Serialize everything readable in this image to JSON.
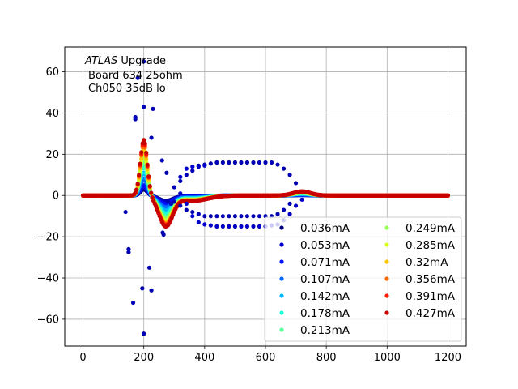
{
  "chart_data": {
    "type": "scatter",
    "annotation": {
      "title_italic": "ATLAS",
      "title_rest": " Upgrade",
      "line2": "Board 634 25ohm",
      "line3": "Ch050 35dB lo"
    },
    "xlim": [
      -60,
      1260
    ],
    "ylim": [
      -73,
      72
    ],
    "xticks": [
      0,
      200,
      400,
      600,
      800,
      1000,
      1200
    ],
    "yticks": [
      -60,
      -40,
      -20,
      0,
      20,
      40,
      60
    ],
    "grid": true,
    "legend_placement": "lower-right",
    "legend_columns": 2,
    "series": [
      {
        "name": "0.036mA",
        "color": "#00007f",
        "peak": 3,
        "trough": -2.5
      },
      {
        "name": "0.053mA",
        "color": "#0000c8",
        "peak": 4,
        "trough": -3
      },
      {
        "name": "0.071mA",
        "color": "#0010ff",
        "peak": 5,
        "trough": -4
      },
      {
        "name": "0.107mA",
        "color": "#0068ff",
        "peak": 8,
        "trough": -5.5
      },
      {
        "name": "0.142mA",
        "color": "#00b8ff",
        "peak": 11,
        "trough": -7
      },
      {
        "name": "0.178mA",
        "color": "#1cffda",
        "peak": 14,
        "trough": -8.5
      },
      {
        "name": "0.213mA",
        "color": "#5bff9c",
        "peak": 17,
        "trough": -10
      },
      {
        "name": "0.249mA",
        "color": "#9cff5a",
        "peak": 19,
        "trough": -11
      },
      {
        "name": "0.285mA",
        "color": "#daff1c",
        "peak": 21,
        "trough": -12
      },
      {
        "name": "0.32mA",
        "color": "#ffc400",
        "peak": 23,
        "trough": -12.8
      },
      {
        "name": "0.356mA",
        "color": "#ff6800",
        "peak": 25,
        "trough": -13.4
      },
      {
        "name": "0.391mA",
        "color": "#ff1a00",
        "peak": 26,
        "trough": -14
      },
      {
        "name": "0.427mA",
        "color": "#c80000",
        "peak": 27,
        "trough": -14.5
      }
    ],
    "outliers_darkblue": [
      [
        140,
        -8
      ],
      [
        150,
        -26
      ],
      [
        150,
        -27.5
      ],
      [
        165,
        -52
      ],
      [
        172,
        37
      ],
      [
        172,
        38
      ],
      [
        180,
        57
      ],
      [
        195,
        -45
      ],
      [
        200,
        -67
      ],
      [
        200,
        43
      ],
      [
        200,
        65
      ],
      [
        218,
        -35
      ],
      [
        225,
        -46
      ],
      [
        225,
        28
      ],
      [
        230,
        42
      ],
      [
        260,
        17
      ],
      [
        262,
        -18
      ],
      [
        265,
        -19
      ],
      [
        275,
        11
      ],
      [
        280,
        -3
      ],
      [
        290,
        -4
      ]
    ],
    "plateau_top": [
      [
        300,
        4
      ],
      [
        320,
        7
      ],
      [
        340,
        10
      ],
      [
        360,
        12
      ],
      [
        380,
        14
      ],
      [
        400,
        15
      ],
      [
        420,
        15.5
      ],
      [
        440,
        16
      ],
      [
        460,
        16
      ],
      [
        480,
        16
      ],
      [
        500,
        16
      ],
      [
        520,
        16
      ],
      [
        540,
        16
      ],
      [
        560,
        16
      ],
      [
        580,
        16
      ],
      [
        600,
        16
      ],
      [
        620,
        16
      ],
      [
        640,
        15
      ],
      [
        660,
        13
      ],
      [
        680,
        10
      ],
      [
        700,
        6
      ]
    ],
    "plateau_bottom": [
      [
        300,
        -3
      ],
      [
        320,
        -5
      ],
      [
        340,
        -7
      ],
      [
        360,
        -8
      ],
      [
        380,
        -9
      ],
      [
        400,
        -10
      ],
      [
        420,
        -10
      ],
      [
        440,
        -10
      ],
      [
        460,
        -10
      ],
      [
        480,
        -10
      ],
      [
        500,
        -10
      ],
      [
        520,
        -10
      ],
      [
        540,
        -10
      ],
      [
        560,
        -10
      ],
      [
        580,
        -10
      ],
      [
        600,
        -10
      ],
      [
        620,
        -10
      ],
      [
        640,
        -9
      ],
      [
        660,
        -7
      ],
      [
        680,
        -4
      ]
    ],
    "plateau_mid": [
      [
        320,
        1
      ],
      [
        340,
        -4
      ],
      [
        360,
        -10
      ],
      [
        380,
        -13
      ],
      [
        400,
        -14
      ],
      [
        420,
        -14.5
      ],
      [
        440,
        -15
      ],
      [
        460,
        -15
      ],
      [
        480,
        -15
      ],
      [
        500,
        -15
      ],
      [
        520,
        -15
      ],
      [
        540,
        -15
      ],
      [
        560,
        -15
      ],
      [
        580,
        -15
      ],
      [
        600,
        -15
      ],
      [
        620,
        -14.5
      ],
      [
        640,
        -14
      ],
      [
        660,
        -12
      ],
      [
        680,
        -9
      ],
      [
        700,
        -5
      ],
      [
        720,
        -2
      ],
      [
        320,
        9
      ],
      [
        340,
        13
      ],
      [
        360,
        14
      ],
      [
        380,
        14.5
      ],
      [
        400,
        14.5
      ]
    ]
  }
}
